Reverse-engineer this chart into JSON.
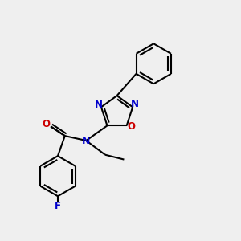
{
  "background_color": "#efefef",
  "bond_color": "#000000",
  "N_color": "#0000cc",
  "O_color": "#cc0000",
  "F_color": "#0000cc",
  "line_width": 1.5,
  "figsize": [
    3.0,
    3.0
  ],
  "dpi": 100,
  "xlim": [
    0,
    10
  ],
  "ylim": [
    0,
    10
  ]
}
